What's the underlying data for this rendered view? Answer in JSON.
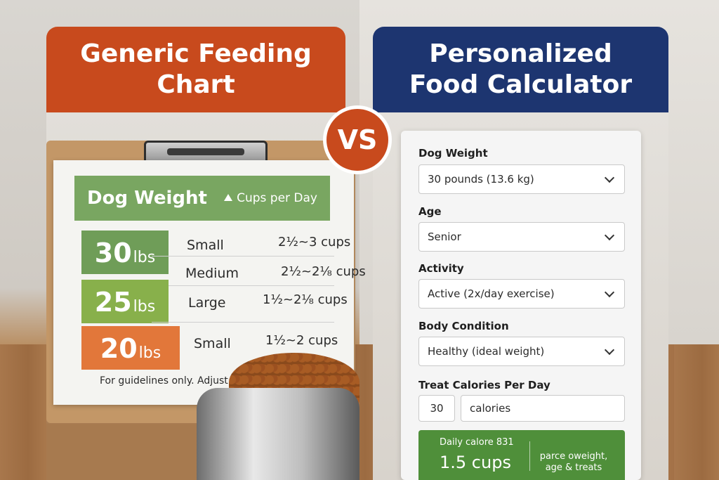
{
  "left_panel": {
    "title": "Generic Feeding Chart",
    "chart": {
      "header_left": "Dog Weight",
      "header_right": "Cups per Day",
      "rows": [
        {
          "weight": "30",
          "unit": "lbs",
          "size": "Small",
          "cups": "2½~3 cups",
          "color": "#6f9d58"
        },
        {
          "weight": "",
          "unit": "",
          "size": "Medium",
          "cups": "2½~2⅛ cups",
          "color": ""
        },
        {
          "weight": "25",
          "unit": "lbs",
          "size": "Large",
          "cups": "1½~2⅛ cups",
          "color": "#88b04b"
        },
        {
          "weight": "20",
          "unit": "lbs",
          "size": "Small",
          "cups": "1½~2 cups",
          "color": "#e2773a"
        }
      ],
      "footnote": "For guidelines only. Adjust dot activ"
    }
  },
  "vs_label": "VS",
  "right_panel": {
    "title": "Personalized Food Calculator",
    "fields": {
      "weight": {
        "label": "Dog Weight",
        "value": "30 pounds (13.6 kg)"
      },
      "age": {
        "label": "Age",
        "value": "Senior"
      },
      "activity": {
        "label": "Activity",
        "value": "Active (2x/day exercise)"
      },
      "body": {
        "label": "Body Condition",
        "value": "Healthy (ideal weight)"
      },
      "treats": {
        "label": "Treat Calories Per Day",
        "value": "30",
        "unit": "calories"
      }
    },
    "result": {
      "calories": "Daily calore 831",
      "cups": "1.5 cups",
      "note": "parce oweight, age & treats"
    }
  },
  "colors": {
    "left_header": "#c84a1d",
    "right_header": "#1d3570",
    "result_green": "#4f8f3a"
  }
}
